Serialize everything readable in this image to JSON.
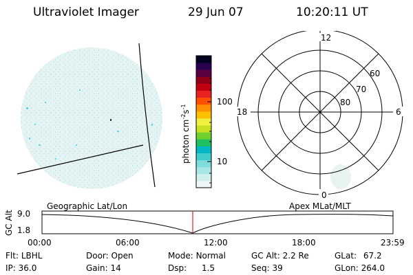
{
  "header": {
    "instrument": "Ultraviolet Imager",
    "date": "29 Jun 07",
    "time": "10:20:11 UT"
  },
  "colorbar": {
    "unit_label": "photon cm",
    "unit_sup1": "-2",
    "unit_s": "s",
    "unit_sup2": "-1",
    "tick_labels": [
      "100",
      "10"
    ],
    "colors": [
      "#eef7f7",
      "#cfeeee",
      "#a8e6e6",
      "#7fdcdc",
      "#40cccc",
      "#00b8c8",
      "#20c060",
      "#70d030",
      "#c8e020",
      "#f0f040",
      "#ffc000",
      "#ff9000",
      "#ff5000",
      "#e82020",
      "#c00010",
      "#900018",
      "#5a0040",
      "#2a0050",
      "#000020"
    ]
  },
  "polar_plot": {
    "mlt_labels": [
      "12",
      "18",
      "6",
      "0"
    ],
    "lat_labels": [
      "60",
      "70",
      "80"
    ]
  },
  "timeline": {
    "ylabel": "GC Alt",
    "y_ticks": [
      "9.0",
      "1.8"
    ],
    "left_title": "Geographic Lat/Lon",
    "right_title": "Apex MLat/MLT",
    "x_ticks": [
      "00:00",
      "06:00",
      "12:00",
      "18:00",
      "23:59"
    ]
  },
  "status": {
    "flt_label": "Flt:",
    "flt_value": "LBHL",
    "ip_label": "IP:",
    "ip_value": "36.0",
    "door_label": "Door:",
    "door_value": "Open",
    "gain_label": "Gain:",
    "gain_value": "14",
    "mode_label": "Mode:",
    "mode_value": "Normal",
    "dsp_label": "Dsp:",
    "dsp_value": "1.5",
    "gcalt_label": "GC Alt:",
    "gcalt_value": "2.2 Re",
    "seq_label": "Seq:",
    "seq_value": "39",
    "glat_label": "GLat:",
    "glat_value": "67.2",
    "glon_label": "GLon:",
    "glon_value": "264.0"
  }
}
